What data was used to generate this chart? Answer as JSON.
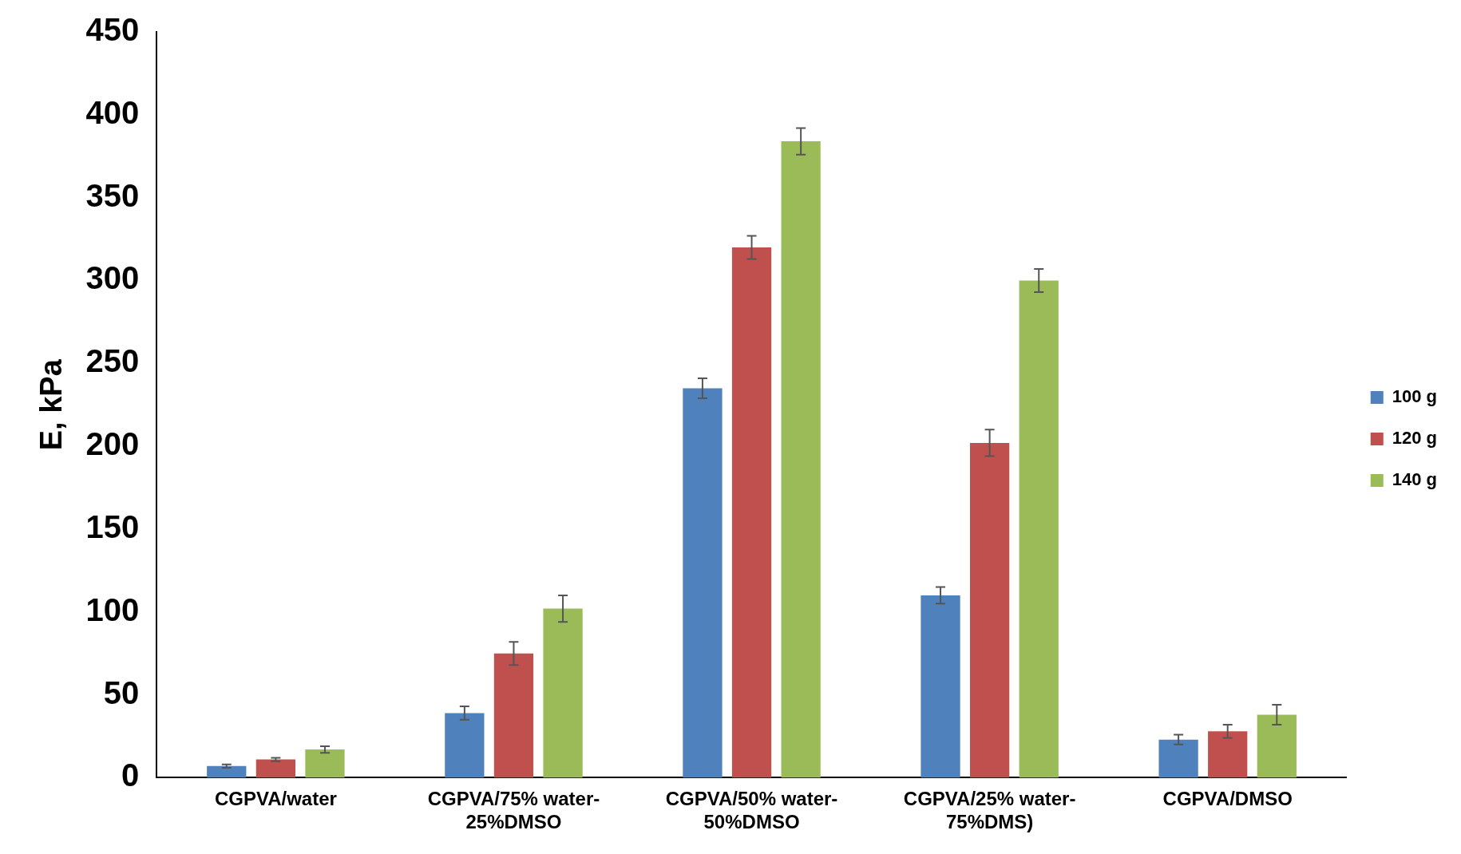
{
  "chart_data": {
    "type": "bar",
    "ylabel": "E, kPa",
    "categories": [
      "CGPVA/water",
      "CGPVA/75% water-25%DMSO",
      "CGPVA/50% water-50%DMSO",
      "CGPVA/25% water-75%DMS)",
      "CGPVA/DMSO"
    ],
    "series": [
      {
        "name": "100 g",
        "color": "#4f81bd",
        "values": [
          7,
          39,
          235,
          110,
          23
        ],
        "errors": [
          1,
          4,
          6,
          5,
          3
        ]
      },
      {
        "name": "120 g",
        "color": "#c0504d",
        "values": [
          11,
          75,
          320,
          202,
          28
        ],
        "errors": [
          1,
          7,
          7,
          8,
          4
        ]
      },
      {
        "name": "140 g",
        "color": "#9bbb59",
        "values": [
          17,
          102,
          384,
          300,
          38
        ],
        "errors": [
          2,
          8,
          8,
          7,
          6
        ]
      }
    ],
    "ylim": [
      0,
      450
    ],
    "yticks": [
      0,
      50,
      100,
      150,
      200,
      250,
      300,
      350,
      400,
      450
    ],
    "grid": false,
    "legend": "right"
  }
}
